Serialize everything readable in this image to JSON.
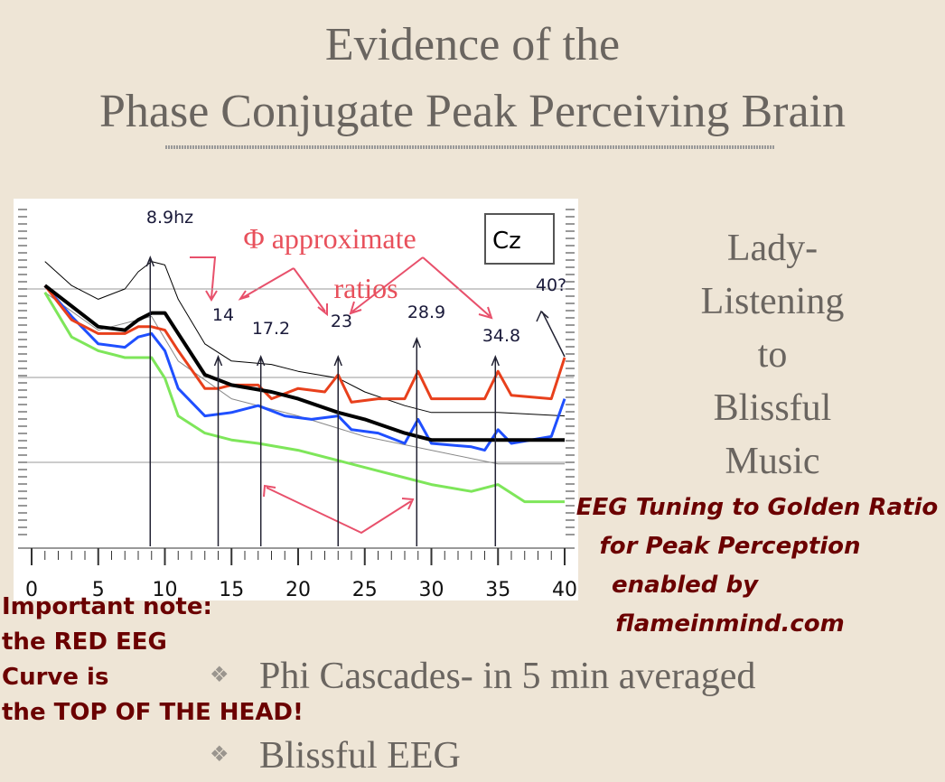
{
  "slide": {
    "title_lines": [
      "Evidence of the",
      "Phase Conjugate Peak Perceiving Brain"
    ],
    "side_lines": [
      "Lady-",
      "Listening",
      "to",
      "Blissful",
      "Music"
    ],
    "credit_lines": [
      "EEG Tuning to Golden Ratio",
      "for Peak Perception",
      "enabled by",
      "flameinmind.com"
    ],
    "note_lines": [
      "Important note:",
      "the RED EEG",
      "Curve is",
      "the TOP OF THE HEAD!"
    ],
    "bullets": [
      "Phi Cascades- in 5 min averaged",
      "Blissful EEG"
    ]
  },
  "chart_data": {
    "type": "line",
    "channel": "Cz",
    "ratio_note": [
      "Φ approximate",
      "ratios"
    ],
    "xlim": [
      0,
      40
    ],
    "xticks": [
      0,
      5,
      10,
      15,
      20,
      25,
      30,
      35,
      40
    ],
    "ylim": [
      0,
      100
    ],
    "annotations": [
      {
        "x": 8.9,
        "label": "8.9hz"
      },
      {
        "x": 14,
        "label": "14"
      },
      {
        "x": 17.2,
        "label": "17.2"
      },
      {
        "x": 23,
        "label": "23"
      },
      {
        "x": 28.9,
        "label": "28.9"
      },
      {
        "x": 34.8,
        "label": "34.8"
      },
      {
        "x": 40,
        "label": "40?"
      }
    ],
    "series": [
      {
        "color": "#000000",
        "width": 1,
        "x": [
          1,
          3,
          5,
          7,
          8,
          9,
          10,
          11,
          13,
          15,
          18,
          20,
          23,
          25,
          28,
          30,
          35,
          40
        ],
        "values": [
          83,
          76,
          72,
          75,
          80,
          83,
          82,
          72,
          59,
          54,
          53,
          51,
          49,
          45,
          41,
          39,
          39,
          38
        ]
      },
      {
        "color": "#888888",
        "width": 1,
        "x": [
          1,
          5,
          9,
          11,
          15,
          20,
          25,
          30,
          35,
          40
        ],
        "values": [
          74,
          63,
          67,
          54,
          43,
          38,
          32,
          28,
          24,
          24
        ]
      },
      {
        "color": "#7ee65a",
        "width": 3,
        "x": [
          1,
          3,
          5,
          7,
          9,
          10,
          11,
          13,
          15,
          17,
          20,
          23,
          26,
          28,
          30,
          33,
          35,
          37,
          40
        ],
        "values": [
          74,
          61,
          57,
          55,
          55,
          49,
          38,
          33,
          31,
          30,
          28,
          25,
          22,
          20,
          18,
          16,
          18,
          13,
          13
        ]
      },
      {
        "color": "#1f4fff",
        "width": 3,
        "x": [
          1,
          3,
          5,
          7,
          8,
          9,
          10,
          11,
          13,
          15,
          17,
          19,
          21,
          23,
          24,
          26,
          28,
          29,
          30,
          33,
          34,
          35,
          36,
          39,
          40
        ],
        "values": [
          76,
          67,
          59,
          58,
          61,
          62,
          57,
          46,
          38,
          39,
          41,
          38,
          37,
          38,
          34,
          33,
          30,
          37,
          30,
          29,
          28,
          34,
          30,
          32,
          43
        ]
      },
      {
        "color": "#e8401c",
        "width": 3,
        "x": [
          1,
          3,
          5,
          6,
          7,
          8,
          9,
          10,
          11,
          13,
          14,
          15,
          17,
          18,
          20,
          22,
          23,
          24,
          26,
          28,
          29,
          30,
          33,
          34,
          35,
          36,
          39,
          40
        ],
        "values": [
          76,
          66,
          62,
          62,
          62,
          64,
          64,
          63,
          57,
          46,
          46,
          47,
          47,
          43,
          46,
          45,
          50,
          42,
          43,
          43,
          51,
          43,
          43,
          43,
          51,
          44,
          43,
          55
        ]
      },
      {
        "color": "#000000",
        "width": 4,
        "x": [
          1,
          3,
          5,
          7,
          8,
          9,
          10,
          11,
          13,
          15,
          18,
          20,
          23,
          25,
          28,
          30,
          35,
          40
        ],
        "values": [
          76,
          70,
          64,
          63,
          66,
          68,
          68,
          62,
          50,
          47,
          45,
          43,
          39,
          37,
          33,
          31,
          31,
          31
        ]
      }
    ]
  }
}
